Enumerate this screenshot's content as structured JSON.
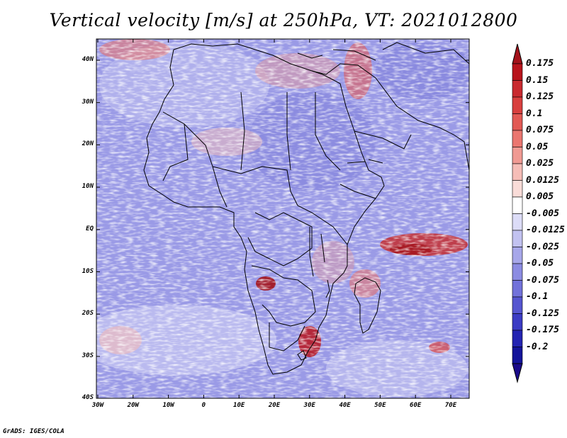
{
  "title": "Vertical velocity [m/s] at 250hPa, VT: 2021012800",
  "credit": "GrADS: IGES/COLA",
  "lat_labels": [
    "40N",
    "30N",
    "20N",
    "10N",
    "EQ",
    "10S",
    "20S",
    "30S",
    "40S"
  ],
  "lon_labels": [
    "30W",
    "20W",
    "10W",
    "0",
    "10E",
    "20E",
    "30E",
    "40E",
    "50E",
    "60E",
    "70E"
  ],
  "colorbar": {
    "levels": [
      "0.175",
      "0.15",
      "0.125",
      "0.1",
      "0.075",
      "0.05",
      "0.025",
      "0.0125",
      "0.005",
      "-0.005",
      "-0.0125",
      "-0.025",
      "-0.05",
      "-0.075",
      "-0.1",
      "-0.125",
      "-0.175",
      "-0.2"
    ],
    "colors": [
      "#b8141c",
      "#c92a30",
      "#d8403f",
      "#e25a55",
      "#ea7670",
      "#f09a93",
      "#f5bdb7",
      "#f9dcd8",
      "#ffffff",
      "#dcdcf7",
      "#c2c2f0",
      "#a7a7e9",
      "#8c8ce2",
      "#7272da",
      "#5656d0",
      "#3c3cc4",
      "#2424b2",
      "#14149a"
    ],
    "top_triangle": "#a3121a",
    "bottom_triangle": "#1a0a8a"
  }
}
